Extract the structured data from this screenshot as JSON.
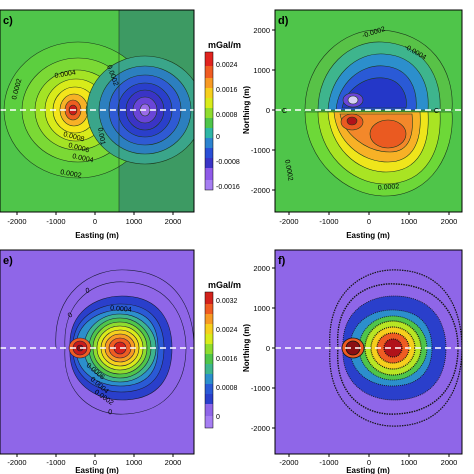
{
  "chart_data": [
    {
      "panel_label": "c)",
      "type": "heatmap",
      "xlabel": "Easting (m)",
      "ylabel": "",
      "xticks": [
        -2000,
        -1000,
        0,
        1000,
        2000
      ],
      "xlim": [
        -2500,
        2500
      ],
      "ylim": [
        -2500,
        2500
      ],
      "colorbar": {
        "title": "mGal/m",
        "ticks": [
          "0.0024",
          "0.0016",
          "0.0008",
          "0",
          "-0.0008",
          "-0.0016"
        ],
        "range": [
          -0.0019,
          0.003
        ]
      },
      "contour_labels": [
        "0.0002",
        "0.0004",
        "0.0002",
        "0.0008",
        "0.0006",
        "0.0004",
        "0.0002",
        "0.001"
      ],
      "profile_line": "dashed, y = 0"
    },
    {
      "panel_label": "d)",
      "type": "heatmap",
      "xlabel": "Easting (m)",
      "ylabel": "Northing (m)",
      "xticks": [
        -2000,
        -1000,
        0,
        1000,
        2000
      ],
      "yticks": [
        2000,
        1000,
        0,
        -1000,
        -2000
      ],
      "xlim": [
        -2500,
        2500
      ],
      "ylim": [
        -2500,
        2500
      ],
      "contour_labels": [
        "-0.0002",
        "-0.0004",
        "0.0002",
        "0.0002"
      ],
      "profile_line": "dashed, y = 0",
      "profile_end_labels": [
        "C",
        "C"
      ]
    },
    {
      "panel_label": "e)",
      "type": "heatmap",
      "xlabel": "Easting (m)",
      "ylabel": "",
      "xticks": [
        -2000,
        -1000,
        0,
        1000,
        2000
      ],
      "xlim": [
        -2500,
        2500
      ],
      "ylim": [
        -2500,
        2500
      ],
      "colorbar": {
        "title": "mGal/m",
        "ticks": [
          "0.0032",
          "0.0024",
          "0.0016",
          "0.0008",
          "0"
        ],
        "range": [
          -0.0002,
          0.0038
        ]
      },
      "contour_labels": [
        "0",
        "0.0004",
        "0",
        "0.0006",
        "0.0004",
        "0.0002",
        "0"
      ],
      "profile_line": "dashed, y = 0"
    },
    {
      "panel_label": "f)",
      "type": "heatmap",
      "xlabel": "Easting (m)",
      "ylabel": "Northing (m)",
      "xticks": [
        -2000,
        -1000,
        0,
        1000,
        2000
      ],
      "yticks": [
        2000,
        1000,
        0,
        -1000,
        -2000
      ],
      "xlim": [
        -2500,
        2500
      ],
      "ylim": [
        -2500,
        2500
      ],
      "profile_line": "dashed, y = 0"
    }
  ],
  "colors": {
    "green": "#4fc54a",
    "light_green": "#6fdb34",
    "yellow_green": "#b5e71b",
    "yellow": "#f3ec18",
    "orange": "#f7a623",
    "dark_orange": "#ef6a22",
    "red": "#e62a1e",
    "dark_red": "#b1121a",
    "cyan": "#21bec9",
    "blue": "#2a4fd6",
    "deep_blue": "#1e2fc2",
    "violet": "#8f5ae8",
    "lavender": "#a67ef2"
  }
}
